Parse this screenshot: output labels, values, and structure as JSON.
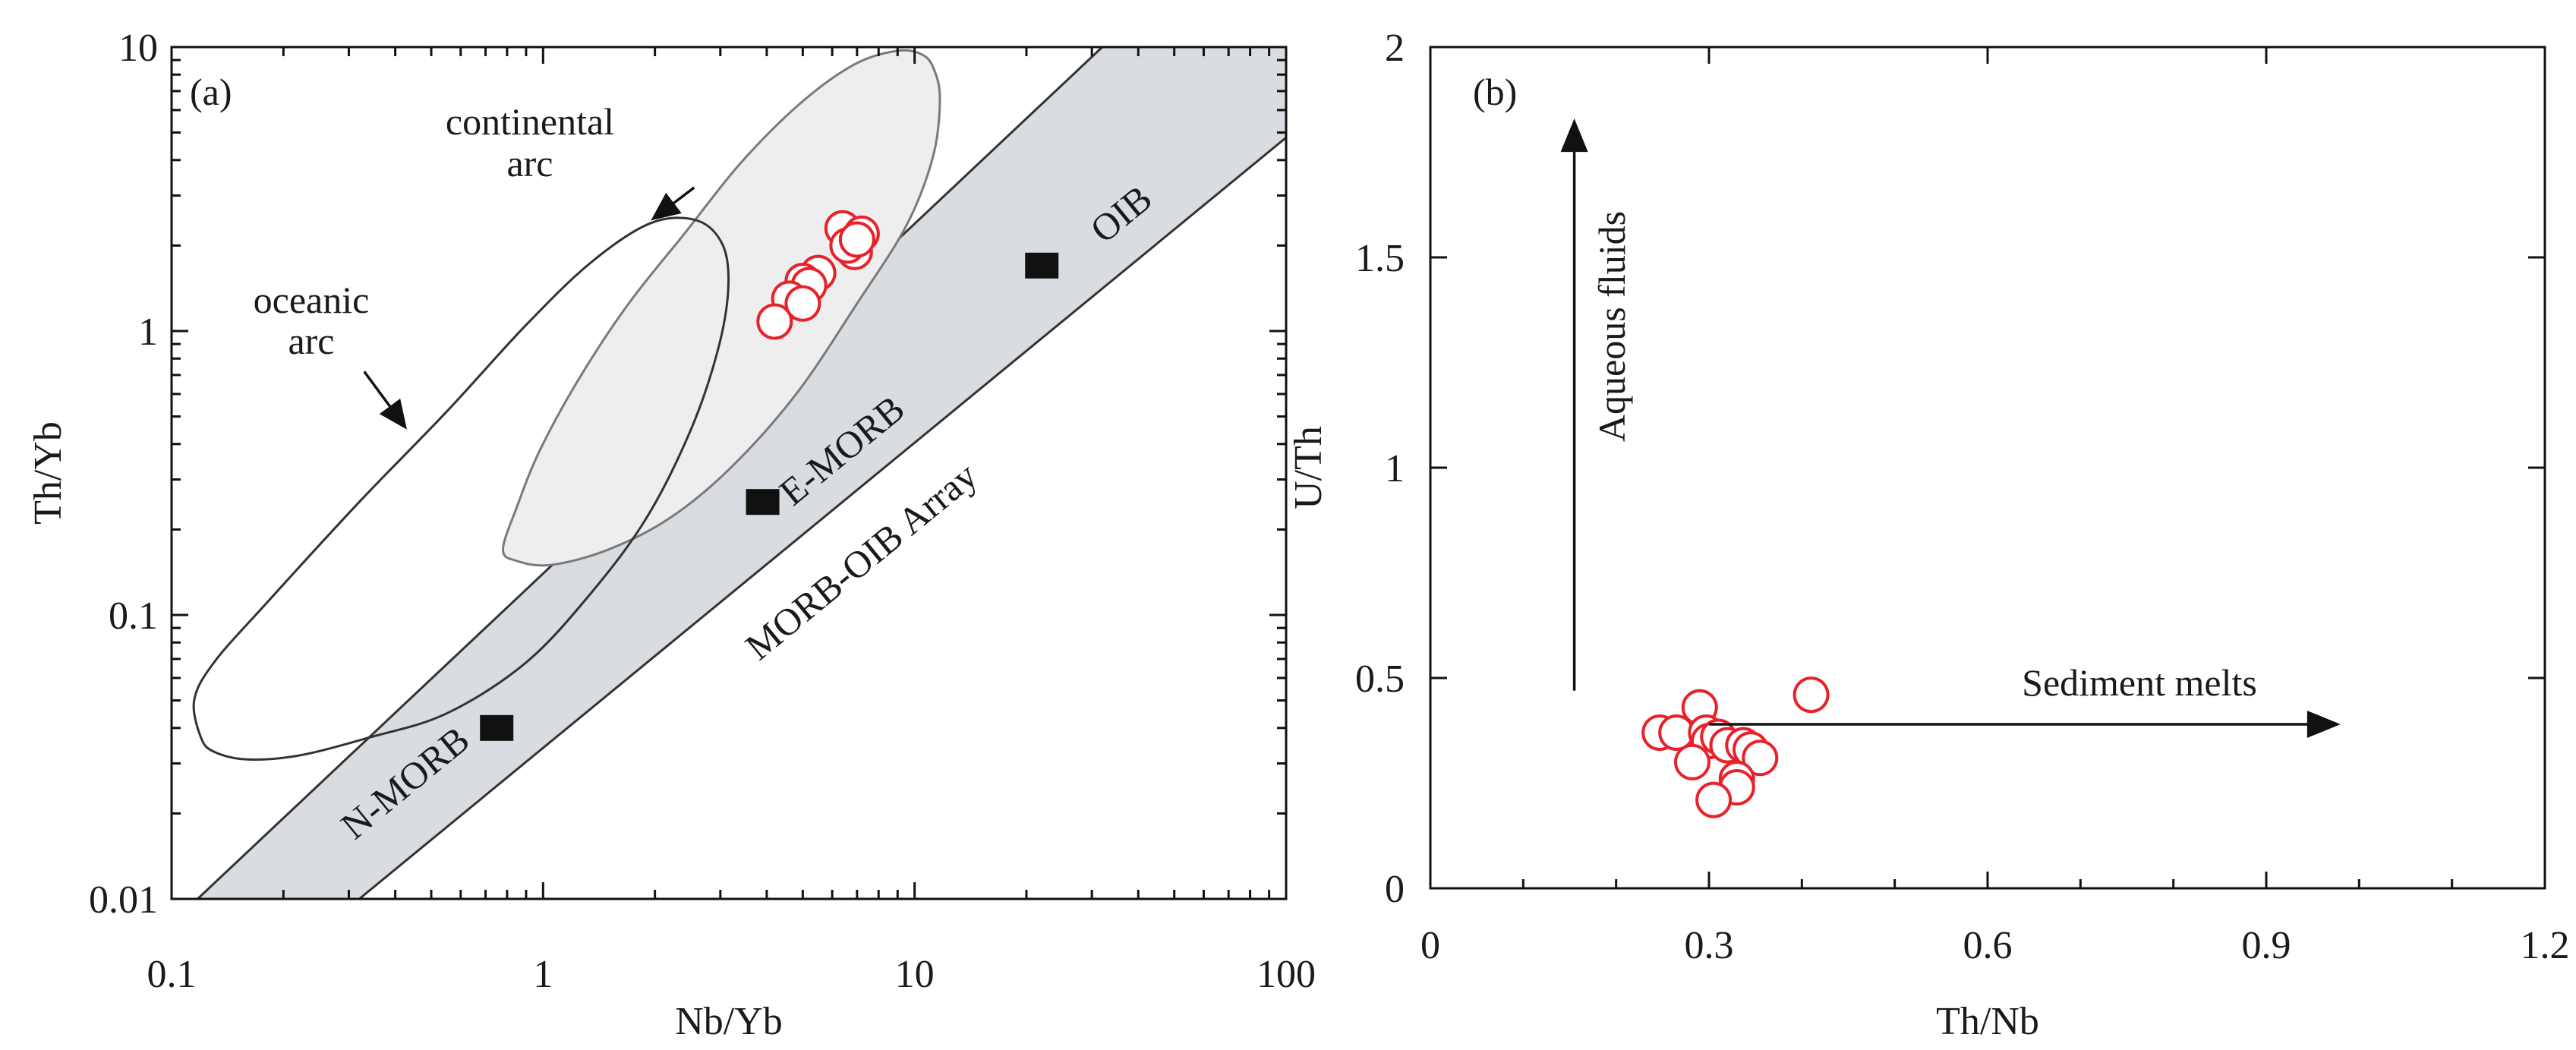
{
  "chart_data": [
    {
      "panel": "(a)",
      "type": "scatter",
      "xscale": "log",
      "yscale": "log",
      "xlabel": "Nb/Yb",
      "ylabel": "Th/Yb",
      "xlim": [
        0.1,
        100
      ],
      "ylim": [
        0.01,
        10
      ],
      "xticks": [
        {
          "value": 0.1,
          "label": "0.1"
        },
        {
          "value": 1,
          "label": "1"
        },
        {
          "value": 10,
          "label": "10"
        },
        {
          "value": 100,
          "label": "100"
        }
      ],
      "yticks": [
        {
          "value": 0.01,
          "label": "0.01"
        },
        {
          "value": 0.1,
          "label": "0.1"
        },
        {
          "value": 1,
          "label": "1"
        },
        {
          "value": 10,
          "label": "10"
        }
      ],
      "fields": {
        "array_label": "MORB-OIB Array",
        "array_lower": [
          [
            0.1,
            0.01
          ],
          [
            0.32,
            0.01
          ],
          [
            100,
            4.8
          ]
        ],
        "array_upper": [
          [
            0.1,
            0.0082
          ],
          [
            32,
            10
          ]
        ],
        "continental_arc": {
          "label_lines": [
            "continental",
            "arc"
          ],
          "outline": [
            [
              0.78,
              0.17
            ],
            [
              0.85,
              0.24
            ],
            [
              0.98,
              0.38
            ],
            [
              1.25,
              0.68
            ],
            [
              1.7,
              1.25
            ],
            [
              2.4,
              2.2
            ],
            [
              3.4,
              3.9
            ],
            [
              4.9,
              6.3
            ],
            [
              6.9,
              8.7
            ],
            [
              9.0,
              9.7
            ],
            [
              10.5,
              9.4
            ],
            [
              11.3,
              8.3
            ],
            [
              11.7,
              6.5
            ],
            [
              11.2,
              4.1
            ],
            [
              9.5,
              2.35
            ],
            [
              7.0,
              1.25
            ],
            [
              4.8,
              0.6
            ],
            [
              3.2,
              0.33
            ],
            [
              2.2,
              0.22
            ],
            [
              1.5,
              0.17
            ],
            [
              1.05,
              0.15
            ],
            [
              0.85,
              0.155
            ]
          ],
          "arrow_from": [
            2.55,
            3.2
          ],
          "arrow_to": [
            1.95,
            2.45
          ]
        },
        "oceanic_arc": {
          "label_lines": [
            "oceanic",
            "arc"
          ],
          "outline": [
            [
              0.12,
              0.037
            ],
            [
              0.13,
              0.033
            ],
            [
              0.16,
              0.031
            ],
            [
              0.22,
              0.032
            ],
            [
              0.34,
              0.037
            ],
            [
              0.55,
              0.045
            ],
            [
              0.9,
              0.068
            ],
            [
              1.35,
              0.12
            ],
            [
              1.9,
              0.22
            ],
            [
              2.5,
              0.45
            ],
            [
              2.95,
              0.85
            ],
            [
              3.15,
              1.4
            ],
            [
              3.05,
              2.0
            ],
            [
              2.6,
              2.45
            ],
            [
              1.95,
              2.4
            ],
            [
              1.35,
              1.75
            ],
            [
              0.9,
              1.05
            ],
            [
              0.55,
              0.52
            ],
            [
              0.32,
              0.25
            ],
            [
              0.18,
              0.11
            ],
            [
              0.13,
              0.068
            ],
            [
              0.115,
              0.05
            ]
          ],
          "arrow_from": [
            0.33,
            0.72
          ],
          "arrow_to": [
            0.43,
            0.45
          ]
        }
      },
      "references": [
        {
          "name": "N-MORB",
          "x": 0.75,
          "y": 0.04
        },
        {
          "name": "E-MORB",
          "x": 3.9,
          "y": 0.25
        },
        {
          "name": "OIB",
          "x": 22,
          "y": 1.7
        }
      ],
      "samples": [
        {
          "x": 6.4,
          "y": 2.3
        },
        {
          "x": 7.2,
          "y": 2.2
        },
        {
          "x": 6.9,
          "y": 1.9
        },
        {
          "x": 6.6,
          "y": 2.0
        },
        {
          "x": 7.0,
          "y": 2.1
        },
        {
          "x": 5.5,
          "y": 1.6
        },
        {
          "x": 5.0,
          "y": 1.5
        },
        {
          "x": 5.2,
          "y": 1.45
        },
        {
          "x": 4.6,
          "y": 1.3
        },
        {
          "x": 5.0,
          "y": 1.25
        },
        {
          "x": 4.2,
          "y": 1.08
        }
      ]
    },
    {
      "panel": "(b)",
      "type": "scatter",
      "xlabel": "Th/Nb",
      "ylabel": "U/Th",
      "xlim": [
        0,
        1.2
      ],
      "ylim": [
        0,
        2
      ],
      "xticks": [
        {
          "value": 0,
          "label": "0"
        },
        {
          "value": 0.3,
          "label": "0.3"
        },
        {
          "value": 0.6,
          "label": "0.6"
        },
        {
          "value": 0.9,
          "label": "0.9"
        },
        {
          "value": 1.2,
          "label": "1.2"
        }
      ],
      "yticks": [
        {
          "value": 0,
          "label": "0"
        },
        {
          "value": 0.5,
          "label": "0.5"
        },
        {
          "value": 1,
          "label": "1"
        },
        {
          "value": 1.5,
          "label": "1.5"
        },
        {
          "value": 2,
          "label": "2"
        }
      ],
      "annotations": [
        {
          "label": "Aqueous fluids",
          "from": [
            0.155,
            0.47
          ],
          "to": [
            0.155,
            1.83
          ]
        },
        {
          "label": "Sediment melts",
          "from": [
            0.3,
            0.39
          ],
          "to": [
            0.98,
            0.39
          ]
        }
      ],
      "samples": [
        {
          "x": 0.247,
          "y": 0.37
        },
        {
          "x": 0.265,
          "y": 0.37
        },
        {
          "x": 0.29,
          "y": 0.43
        },
        {
          "x": 0.297,
          "y": 0.37
        },
        {
          "x": 0.3,
          "y": 0.35
        },
        {
          "x": 0.31,
          "y": 0.36
        },
        {
          "x": 0.282,
          "y": 0.3
        },
        {
          "x": 0.32,
          "y": 0.34
        },
        {
          "x": 0.337,
          "y": 0.34
        },
        {
          "x": 0.345,
          "y": 0.33
        },
        {
          "x": 0.355,
          "y": 0.31
        },
        {
          "x": 0.33,
          "y": 0.26
        },
        {
          "x": 0.33,
          "y": 0.24
        },
        {
          "x": 0.305,
          "y": 0.21
        },
        {
          "x": 0.41,
          "y": 0.46
        }
      ]
    }
  ]
}
